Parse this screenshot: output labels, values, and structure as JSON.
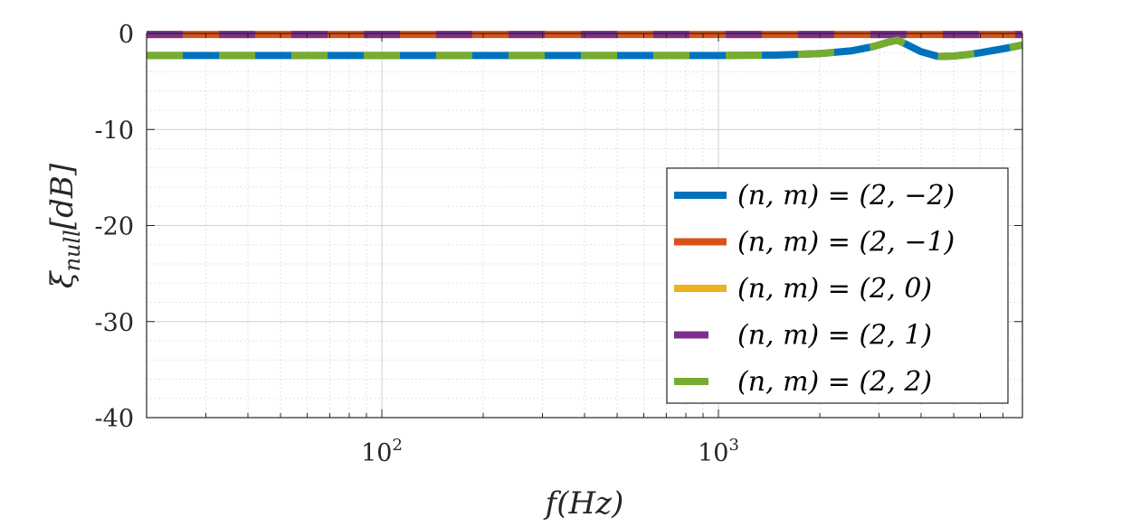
{
  "chart_data": {
    "type": "line",
    "x_scale": "log",
    "xlim": [
      20,
      8000
    ],
    "ylim": [
      -40,
      0
    ],
    "xlabel": "f(Hz)",
    "ylabel": "ξnull[dB]",
    "ylabel_main": "ξ",
    "ylabel_sub": "null",
    "ylabel_rest": "[dB]",
    "grid": true,
    "minor_grid": true,
    "legend_position": "lower-right",
    "y_ticks": [
      0,
      -10,
      -20,
      -30,
      -40
    ],
    "y_tick_labels": [
      "0",
      "-10",
      "-20",
      "-30",
      "-40"
    ],
    "x_ticks": [
      100,
      1000
    ],
    "x_tick_labels": [
      {
        "base": "10",
        "exp": "2"
      },
      {
        "base": "10",
        "exp": "3"
      }
    ],
    "series": [
      {
        "name": "(n, m) = (2, −2)",
        "color": "#0072BD",
        "dashed": false,
        "x": [
          20,
          100,
          500,
          1000,
          1500,
          2000,
          2500,
          2900,
          3200,
          3400,
          3600,
          4000,
          4500,
          5000,
          5500,
          6000,
          7000,
          8000
        ],
        "y": [
          -2.3,
          -2.3,
          -2.3,
          -2.3,
          -2.25,
          -2.1,
          -1.8,
          -1.35,
          -0.9,
          -0.7,
          -1.1,
          -1.9,
          -2.4,
          -2.35,
          -2.2,
          -2.0,
          -1.6,
          -1.2
        ]
      },
      {
        "name": "(n, m) = (2, −1)",
        "color": "#D95319",
        "dashed": false,
        "x": [
          20,
          8000
        ],
        "y": [
          -0.1,
          -0.1
        ]
      },
      {
        "name": "(n, m) = (2, 0)",
        "color": "#EDB120",
        "dashed": false,
        "x": [
          20,
          8000
        ],
        "y": [
          -0.1,
          -0.1
        ]
      },
      {
        "name": "(n, m) = (2, 1)",
        "color": "#7E2F8E",
        "dashed": true,
        "x": [
          20,
          8000
        ],
        "y": [
          -0.1,
          -0.1
        ]
      },
      {
        "name": "(n, m) = (2, 2)",
        "color": "#77AC30",
        "dashed": true,
        "x": [
          20,
          100,
          500,
          1000,
          1500,
          2000,
          2500,
          2900,
          3200,
          3400,
          3600,
          4000,
          4500,
          5000,
          5500,
          6000,
          7000,
          8000
        ],
        "y": [
          -2.3,
          -2.3,
          -2.3,
          -2.3,
          -2.25,
          -2.1,
          -1.8,
          -1.35,
          -0.9,
          -0.7,
          -1.1,
          -1.9,
          -2.4,
          -2.35,
          -2.2,
          -2.0,
          -1.6,
          -1.2
        ]
      }
    ]
  }
}
